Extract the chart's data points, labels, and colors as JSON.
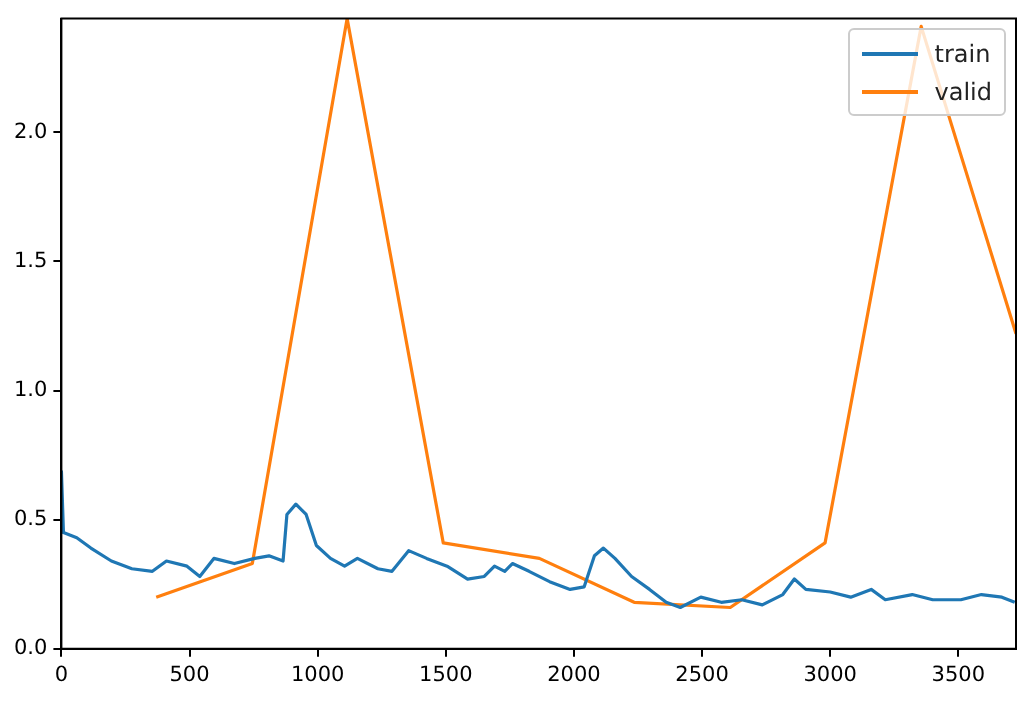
{
  "chart_data": {
    "type": "line",
    "xlim": [
      0,
      3725
    ],
    "xticks": [
      0,
      500,
      1000,
      1500,
      2000,
      2500,
      3000,
      3500
    ],
    "ylim": [
      0,
      2.44
    ],
    "yticks": [
      {
        "value": 0,
        "label": "0.0"
      },
      {
        "value": 0.5,
        "label": "0.5"
      },
      {
        "value": 1,
        "label": "1.0"
      },
      {
        "value": 1.5,
        "label": "1.5"
      },
      {
        "value": 2,
        "label": "2.0"
      }
    ],
    "grid": false,
    "legend": "top right",
    "marker": "none",
    "line_style": "solid",
    "series": [
      {
        "name": "train",
        "color": "#1f77b4",
        "x": [
          0,
          8,
          60,
          115,
          195,
          275,
          355,
          410,
          490,
          540,
          595,
          675,
          755,
          810,
          865,
          880,
          915,
          955,
          995,
          1050,
          1105,
          1155,
          1235,
          1290,
          1355,
          1425,
          1505,
          1585,
          1650,
          1690,
          1730,
          1760,
          1825,
          1905,
          1985,
          2040,
          2080,
          2115,
          2160,
          2225,
          2295,
          2360,
          2415,
          2495,
          2575,
          2655,
          2735,
          2815,
          2860,
          2905,
          3000,
          3080,
          3160,
          3215,
          3320,
          3400,
          3510,
          3590,
          3670,
          3720
        ],
        "values": [
          0.69,
          0.45,
          0.43,
          0.39,
          0.34,
          0.31,
          0.3,
          0.34,
          0.32,
          0.28,
          0.35,
          0.33,
          0.35,
          0.36,
          0.34,
          0.52,
          0.56,
          0.52,
          0.4,
          0.35,
          0.32,
          0.35,
          0.31,
          0.3,
          0.38,
          0.35,
          0.32,
          0.27,
          0.28,
          0.32,
          0.3,
          0.33,
          0.3,
          0.26,
          0.23,
          0.24,
          0.36,
          0.39,
          0.35,
          0.28,
          0.23,
          0.18,
          0.16,
          0.2,
          0.18,
          0.19,
          0.17,
          0.21,
          0.27,
          0.23,
          0.22,
          0.2,
          0.23,
          0.19,
          0.21,
          0.19,
          0.19,
          0.21,
          0.2,
          0.18
        ]
      },
      {
        "name": "valid",
        "color": "#ff7f0e",
        "x": [
          370,
          745,
          1115,
          1490,
          1865,
          2235,
          2610,
          2980,
          3355,
          3725
        ],
        "values": [
          0.2,
          0.33,
          2.44,
          0.41,
          0.35,
          0.18,
          0.16,
          0.41,
          2.41,
          1.22
        ]
      }
    ]
  }
}
